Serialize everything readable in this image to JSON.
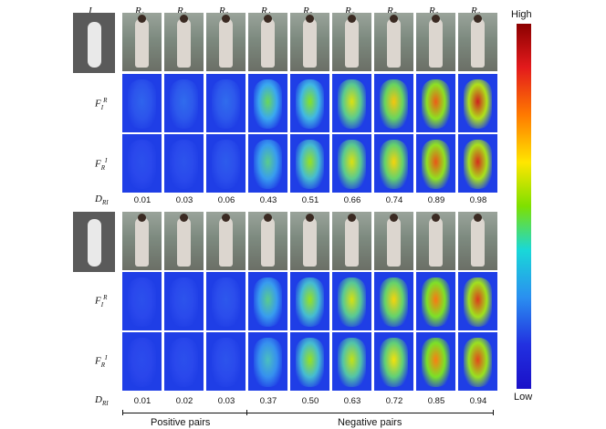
{
  "columns": {
    "query": "I",
    "ranks": [
      "R",
      "R",
      "R",
      "R",
      "R",
      "R",
      "R",
      "R",
      "R"
    ],
    "rank_subs": [
      "1",
      "2",
      "3",
      "4",
      "5",
      "6",
      "7",
      "8",
      "9"
    ]
  },
  "row_labels": {
    "fi_base": "F",
    "fi_sub": "I",
    "fi_sup": "R",
    "fr_base": "F",
    "fr_sub": "R",
    "fr_sup": "I",
    "d_base": "D",
    "d_sub": "RI"
  },
  "top_scores": [
    "0.01",
    "0.03",
    "0.06",
    "0.43",
    "0.51",
    "0.66",
    "0.74",
    "0.89",
    "0.98"
  ],
  "bottom_scores": [
    "0.01",
    "0.02",
    "0.03",
    "0.37",
    "0.50",
    "0.63",
    "0.72",
    "0.85",
    "0.94"
  ],
  "top_heat_fi": [
    0.1,
    0.12,
    0.12,
    0.45,
    0.52,
    0.66,
    0.74,
    0.89,
    0.98
  ],
  "top_heat_fr": [
    0.05,
    0.06,
    0.08,
    0.4,
    0.55,
    0.66,
    0.72,
    0.9,
    0.96
  ],
  "bottom_heat_fi": [
    0.05,
    0.06,
    0.07,
    0.4,
    0.55,
    0.65,
    0.72,
    0.85,
    0.94
  ],
  "bottom_heat_fr": [
    0.04,
    0.05,
    0.06,
    0.35,
    0.55,
    0.62,
    0.7,
    0.84,
    0.92
  ],
  "colorbar": {
    "high": "High",
    "low": "Low"
  },
  "captions": {
    "positive": "Positive pairs",
    "negative": "Negative pairs"
  }
}
